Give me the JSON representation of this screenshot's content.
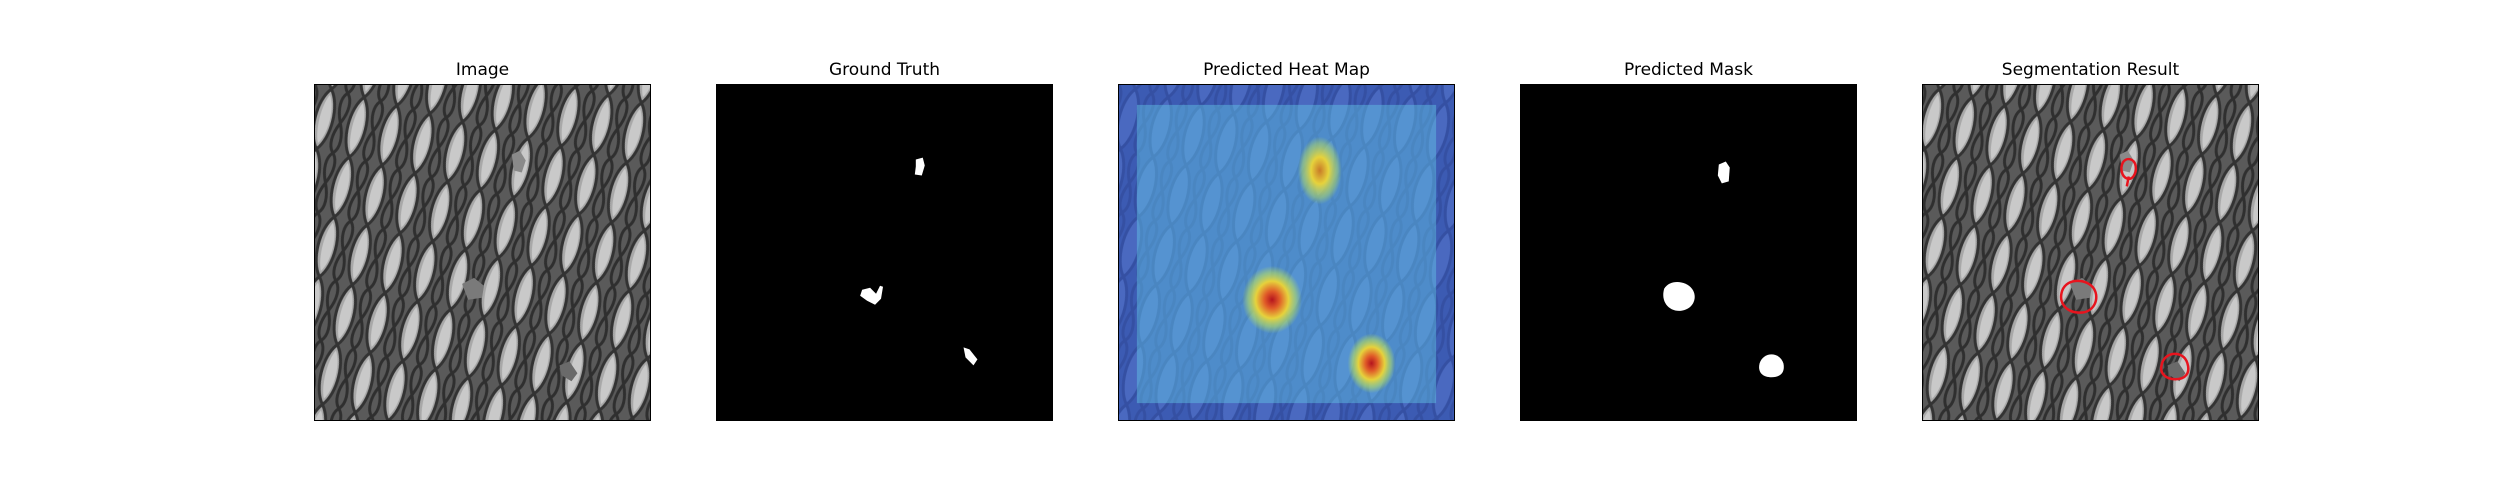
{
  "figure": {
    "panels": [
      {
        "title": "Image",
        "content": "grayscale-mesh-texture"
      },
      {
        "title": "Ground Truth",
        "content": "binary-defect-mask"
      },
      {
        "title": "Predicted Heat Map",
        "content": "heatmap-overlay"
      },
      {
        "title": "Predicted Mask",
        "content": "binary-predicted-mask"
      },
      {
        "title": "Segmentation Result",
        "content": "red-contour-overlay"
      }
    ]
  },
  "colors": {
    "background": "#ffffff",
    "mask_background": "#000000",
    "mask_foreground": "#ffffff",
    "contour": "#e8141e",
    "heat_low": "#3c46b4",
    "heat_mid": "#5ab4dc",
    "heat_high": "#dc1e28"
  }
}
